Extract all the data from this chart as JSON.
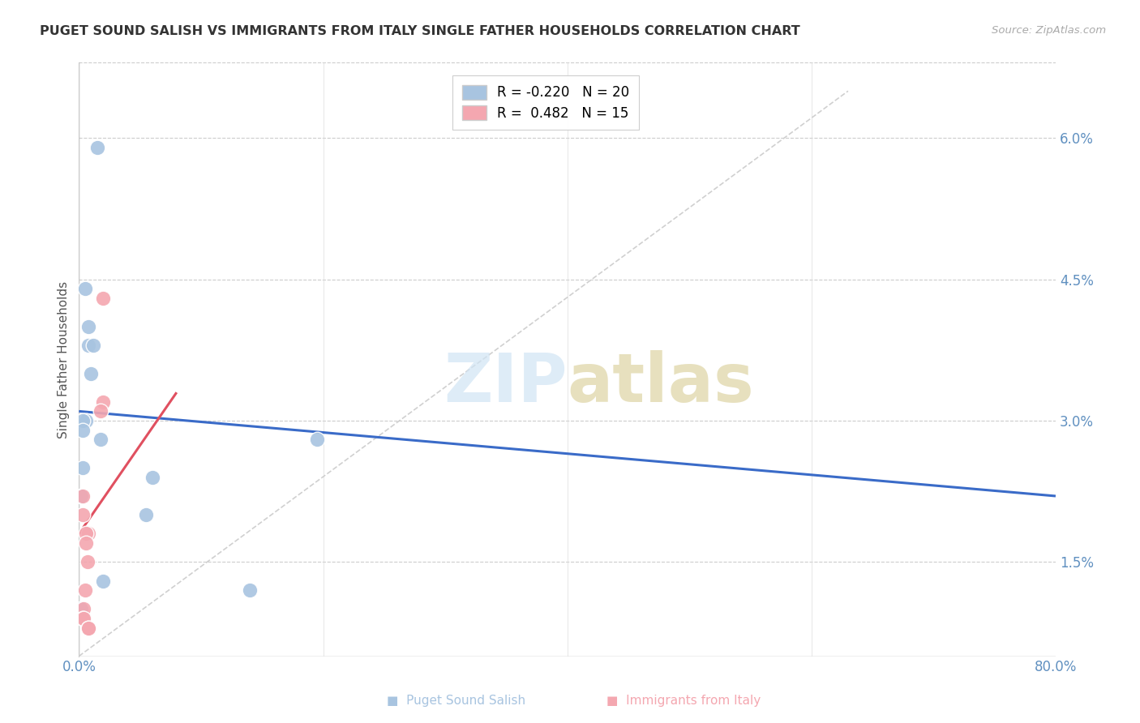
{
  "title": "PUGET SOUND SALISH VS IMMIGRANTS FROM ITALY SINGLE FATHER HOUSEHOLDS CORRELATION CHART",
  "source": "Source: ZipAtlas.com",
  "ylabel": "Single Father Households",
  "ytick_labels": [
    "1.5%",
    "3.0%",
    "4.5%",
    "6.0%"
  ],
  "ytick_values": [
    0.015,
    0.03,
    0.045,
    0.06
  ],
  "xlim": [
    0.0,
    0.8
  ],
  "ylim": [
    0.005,
    0.068
  ],
  "legend_blue_R": "-0.220",
  "legend_blue_N": "20",
  "legend_pink_R": "0.482",
  "legend_pink_N": "15",
  "blue_color": "#a8c4e0",
  "pink_color": "#f4a7b0",
  "blue_line_color": "#3a6bc8",
  "pink_line_color": "#e05060",
  "diag_line_color": "#d0d0d0",
  "blue_scatter_x": [
    0.015,
    0.005,
    0.008,
    0.008,
    0.012,
    0.01,
    0.006,
    0.003,
    0.003,
    0.018,
    0.003,
    0.002,
    0.002,
    0.06,
    0.055,
    0.195,
    0.14,
    0.02,
    0.002,
    0.002
  ],
  "blue_scatter_y": [
    0.059,
    0.044,
    0.04,
    0.038,
    0.038,
    0.035,
    0.03,
    0.03,
    0.029,
    0.028,
    0.025,
    0.022,
    0.022,
    0.024,
    0.02,
    0.028,
    0.012,
    0.013,
    0.01,
    0.01
  ],
  "pink_scatter_x": [
    0.003,
    0.003,
    0.008,
    0.006,
    0.006,
    0.007,
    0.02,
    0.018,
    0.02,
    0.005,
    0.004,
    0.003,
    0.004,
    0.008,
    0.008
  ],
  "pink_scatter_y": [
    0.022,
    0.02,
    0.018,
    0.018,
    0.017,
    0.015,
    0.032,
    0.031,
    0.043,
    0.012,
    0.01,
    0.009,
    0.009,
    0.008,
    0.008
  ],
  "blue_line_x": [
    0.0,
    0.8
  ],
  "blue_line_y": [
    0.031,
    0.022
  ],
  "pink_line_x": [
    0.0,
    0.08
  ],
  "pink_line_y": [
    0.018,
    0.033
  ],
  "diag_line_x": [
    0.0,
    0.63
  ],
  "diag_line_y": [
    0.005,
    0.065
  ],
  "background_color": "#ffffff",
  "grid_color": "#cccccc"
}
